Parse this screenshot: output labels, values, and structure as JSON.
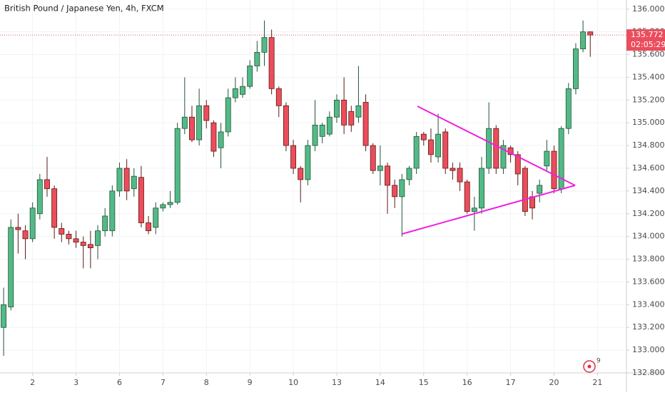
{
  "chart_data": {
    "type": "candlestick",
    "title": "British Pound / Japanese Yen, 4h, FXCM",
    "open": [
      133.2,
      133.38,
      134.08,
      134.05,
      133.98,
      134.2,
      134.5,
      134.42,
      134.07,
      134.02,
      133.98,
      133.95,
      133.93,
      133.92,
      134.05,
      134.05,
      134.4,
      134.6,
      134.42,
      134.52,
      134.12,
      134.08,
      134.25,
      134.28,
      134.3,
      134.95,
      135.05,
      134.85,
      135.15,
      135.0,
      134.78,
      134.92,
      135.22,
      135.25,
      135.32,
      135.5,
      135.62,
      135.75,
      135.3,
      135.15,
      134.8,
      134.6,
      134.5,
      134.8,
      134.88,
      134.9,
      135.05,
      135.2,
      135.1,
      135.05,
      135.18,
      134.8,
      134.58,
      134.62,
      134.45,
      134.35,
      134.5,
      134.6,
      134.9,
      134.85,
      134.7,
      134.92,
      134.6,
      134.6,
      134.48,
      134.22,
      134.25,
      134.6,
      134.95,
      134.6,
      134.78,
      134.72,
      134.6,
      134.35,
      134.38,
      134.62,
      134.75,
      134.42,
      134.95,
      135.3,
      135.65,
      135.8
    ],
    "high": [
      133.55,
      134.15,
      134.2,
      134.1,
      134.3,
      134.55,
      134.7,
      134.45,
      134.12,
      134.05,
      134.05,
      134.0,
      134.05,
      134.1,
      134.25,
      134.45,
      134.65,
      134.68,
      134.6,
      134.62,
      134.18,
      134.3,
      134.3,
      134.4,
      135.0,
      135.4,
      135.15,
      135.3,
      135.2,
      135.02,
      135.0,
      135.3,
      135.4,
      135.4,
      135.55,
      135.72,
      135.9,
      135.82,
      135.32,
      135.18,
      134.85,
      134.62,
      134.85,
      135.2,
      135.0,
      135.1,
      135.25,
      135.4,
      135.15,
      135.5,
      135.25,
      134.82,
      134.8,
      134.65,
      134.5,
      134.55,
      134.62,
      134.92,
      134.92,
      134.95,
      135.08,
      134.95,
      134.65,
      134.65,
      134.5,
      134.35,
      134.7,
      135.18,
      134.98,
      134.85,
      134.8,
      134.75,
      134.62,
      134.4,
      134.5,
      134.85,
      134.8,
      134.97,
      135.35,
      135.7,
      135.9,
      135.8
    ],
    "low": [
      132.95,
      133.35,
      133.85,
      133.8,
      133.95,
      134.15,
      134.35,
      133.98,
      133.95,
      133.93,
      133.9,
      133.72,
      133.72,
      133.8,
      134.0,
      134.0,
      134.35,
      134.32,
      134.35,
      134.08,
      134.02,
      134.02,
      134.22,
      134.25,
      134.28,
      134.9,
      134.83,
      134.8,
      134.95,
      134.7,
      134.6,
      134.88,
      135.18,
      135.22,
      135.3,
      135.45,
      135.5,
      135.25,
      135.05,
      134.75,
      134.55,
      134.3,
      134.45,
      134.75,
      134.82,
      134.88,
      135.0,
      134.9,
      134.92,
      135.0,
      134.75,
      134.55,
      134.45,
      134.2,
      134.25,
      134.0,
      134.45,
      134.55,
      134.8,
      134.65,
      134.65,
      134.55,
      134.5,
      134.4,
      134.2,
      134.05,
      134.2,
      134.55,
      134.55,
      134.55,
      134.65,
      134.45,
      134.18,
      134.15,
      134.3,
      134.58,
      134.38,
      134.38,
      134.9,
      135.25,
      135.62,
      135.58
    ],
    "close": [
      133.4,
      134.08,
      134.06,
      133.98,
      134.25,
      134.5,
      134.42,
      134.08,
      134.02,
      133.98,
      133.95,
      133.92,
      133.9,
      134.05,
      134.18,
      134.4,
      134.6,
      134.4,
      134.53,
      134.12,
      134.05,
      134.25,
      134.28,
      134.3,
      134.95,
      135.05,
      134.85,
      135.15,
      135.02,
      134.75,
      134.92,
      135.22,
      135.3,
      135.32,
      135.5,
      135.62,
      135.75,
      135.3,
      135.15,
      134.8,
      134.6,
      134.5,
      134.8,
      134.98,
      134.98,
      135.05,
      135.2,
      134.98,
      134.98,
      135.15,
      134.8,
      134.58,
      134.62,
      134.45,
      134.35,
      134.5,
      134.6,
      134.88,
      134.85,
      134.72,
      134.9,
      134.6,
      134.58,
      134.48,
      134.22,
      134.25,
      134.6,
      134.95,
      134.6,
      134.8,
      134.72,
      134.55,
      134.22,
      134.25,
      134.45,
      134.75,
      134.42,
      134.95,
      135.3,
      135.65,
      135.8,
      135.772
    ],
    "up_color": "#53b987",
    "down_color": "#eb4d5c",
    "up_border": "#225437",
    "down_border": "#5b1a13",
    "xlim": [
      -0.5,
      86
    ],
    "xticks": [
      {
        "value": 4,
        "label": "2"
      },
      {
        "value": 10,
        "label": "3"
      },
      {
        "value": 16,
        "label": "6"
      },
      {
        "value": 22,
        "label": "7"
      },
      {
        "value": 28,
        "label": "8"
      },
      {
        "value": 34,
        "label": "9"
      },
      {
        "value": 40,
        "label": "10"
      },
      {
        "value": 46,
        "label": "13"
      },
      {
        "value": 52,
        "label": "14"
      },
      {
        "value": 58,
        "label": "15"
      },
      {
        "value": 64,
        "label": "16"
      },
      {
        "value": 70,
        "label": "17"
      },
      {
        "value": 76,
        "label": "20"
      },
      {
        "value": 82,
        "label": "21"
      }
    ],
    "ylim": [
      132.8,
      136.08
    ],
    "yticks": [
      {
        "value": 132.8,
        "label": "132.800"
      },
      {
        "value": 133.0,
        "label": "133.000"
      },
      {
        "value": 133.2,
        "label": "133.200"
      },
      {
        "value": 133.4,
        "label": "133.400"
      },
      {
        "value": 133.6,
        "label": "133.600"
      },
      {
        "value": 133.8,
        "label": "133.800"
      },
      {
        "value": 134.0,
        "label": "134.000"
      },
      {
        "value": 134.2,
        "label": "134.200"
      },
      {
        "value": 134.4,
        "label": "134.400"
      },
      {
        "value": 134.6,
        "label": "134.600"
      },
      {
        "value": 134.8,
        "label": "134.800"
      },
      {
        "value": 135.0,
        "label": "135.000"
      },
      {
        "value": 135.2,
        "label": "135.200"
      },
      {
        "value": 135.4,
        "label": "135.400"
      },
      {
        "value": 135.6,
        "label": "135.600"
      },
      {
        "value": 135.8,
        "label": "135.800"
      },
      {
        "value": 136.0,
        "label": "136.000"
      }
    ],
    "current_price": {
      "value": 135.772,
      "label": "135.772"
    },
    "countdown": "02:05:29",
    "badge": "9"
  }
}
